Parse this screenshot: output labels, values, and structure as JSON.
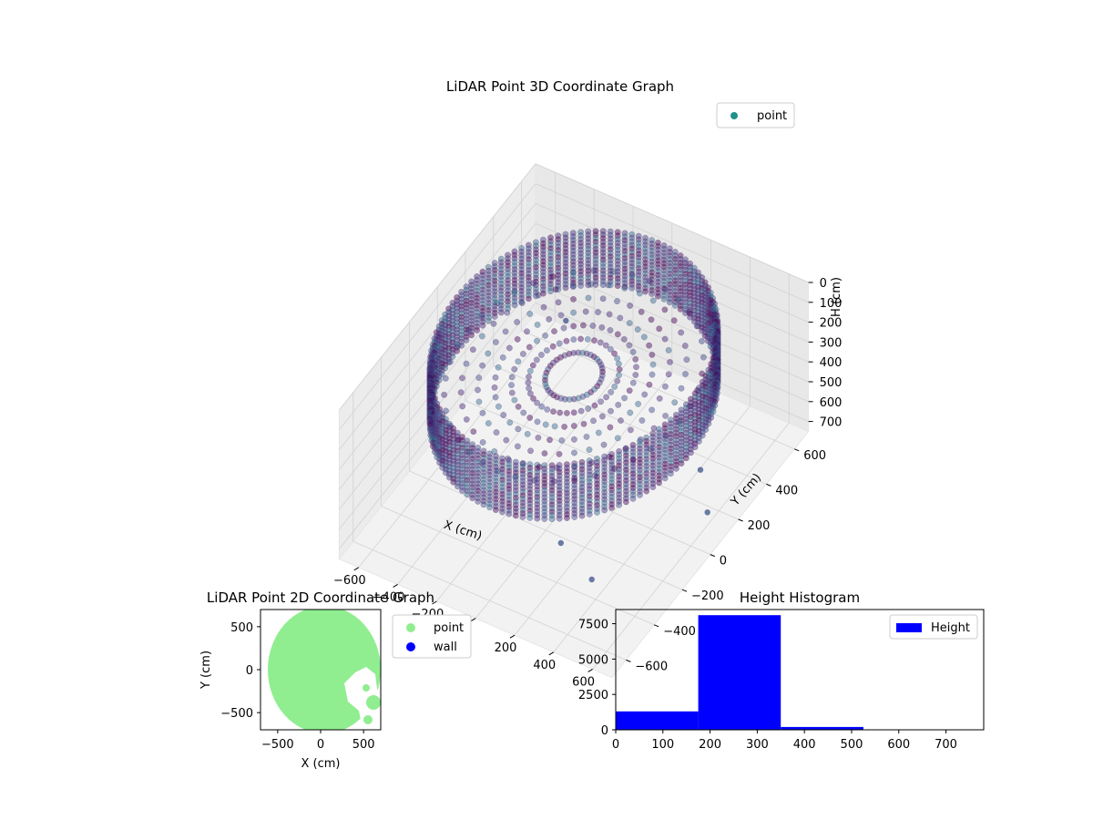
{
  "chart_data": [
    {
      "type": "scatter",
      "title": "LiDAR Point 3D Coordinate Graph",
      "xlabel": "X (cm)",
      "ylabel": "Y (cm)",
      "zlabel": "H (cm)",
      "xlim": [
        -700,
        700
      ],
      "ylim": [
        -700,
        700
      ],
      "zlim": [
        0,
        750
      ],
      "z_inverted": true,
      "grid": true,
      "legend": {
        "placement": "top-right",
        "entries": [
          "point"
        ]
      },
      "x_ticks": [
        "−600",
        "−400",
        "−200",
        "0",
        "200",
        "400",
        "600"
      ],
      "y_ticks": [
        "−600",
        "−400",
        "−200",
        "0",
        "200",
        "400",
        "600"
      ],
      "z_ticks": [
        "0",
        "100",
        "200",
        "300",
        "400",
        "500",
        "600",
        "700"
      ],
      "colormap": [
        "#440154",
        "#3b528b"
      ],
      "wall": {
        "radius": 600,
        "h_top": 10,
        "h_bottom": 280
      },
      "series": [
        {
          "name": "point",
          "outliers": [
            [
              -120,
              110,
              20
            ],
            [
              380,
              -620,
              280
            ],
            [
              560,
              -650,
              360
            ],
            [
              700,
              -20,
              520
            ],
            [
              520,
              180,
              560
            ]
          ]
        }
      ]
    },
    {
      "type": "scatter",
      "title": "LiDAR Point 2D Coordinate Graph",
      "xlabel": "X (cm)",
      "ylabel": "Y (cm)",
      "xlim": [
        -700,
        700
      ],
      "ylim": [
        -700,
        700
      ],
      "x_ticks": [
        "−500",
        "0",
        "500"
      ],
      "y_ticks": [
        "500",
        "0",
        "−500"
      ],
      "legend": {
        "placement": "right-outside",
        "entries": [
          "point",
          "wall"
        ]
      },
      "series": [
        {
          "name": "point",
          "color": "#90ee90"
        },
        {
          "name": "wall",
          "color": "#0000ff"
        }
      ]
    },
    {
      "type": "bar",
      "title": "Height Histogram",
      "xlim": [
        0,
        780
      ],
      "ylim": [
        0,
        8500
      ],
      "x_ticks": [
        "0",
        "100",
        "200",
        "300",
        "400",
        "500",
        "600",
        "700"
      ],
      "y_ticks": [
        "0",
        "2500",
        "5000",
        "7500"
      ],
      "legend": {
        "placement": "top-right",
        "entries": [
          "Height"
        ]
      },
      "series": [
        {
          "name": "Height",
          "color": "#0000ff",
          "bins": [
            [
              0,
              175,
              1300
            ],
            [
              175,
              350,
              8100
            ],
            [
              350,
              525,
              200
            ],
            [
              525,
              700,
              30
            ],
            [
              700,
              780,
              10
            ]
          ]
        }
      ]
    }
  ]
}
